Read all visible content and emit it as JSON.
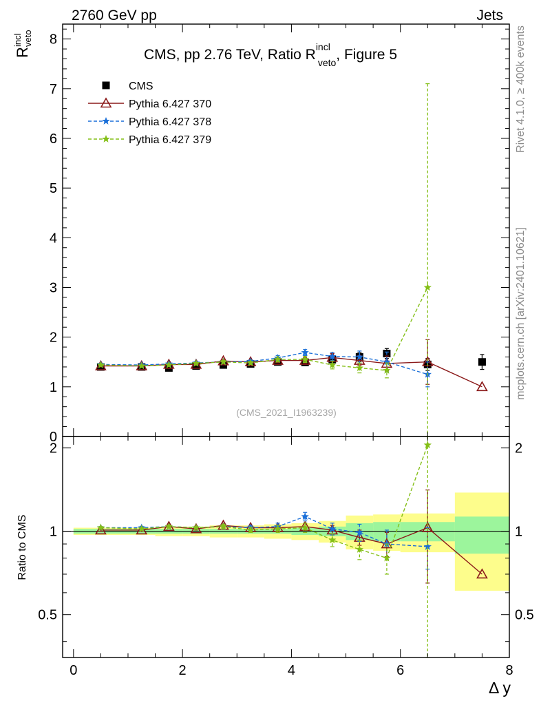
{
  "header": {
    "beam": "2760 GeV pp",
    "process": "Jets"
  },
  "side_text": {
    "rivet": "Rivet 4.1.0, ≥ 400k events",
    "mcplots": "mcplots.cern.ch [arXiv:2401.10621]"
  },
  "analysis_id": "(CMS_2021_I1963239)",
  "chart_data": [
    {
      "panel": "main",
      "type": "line",
      "title_main": "CMS, pp 2.76 TeV, Ratio R",
      "title_sup": "incl",
      "title_sub": "veto",
      "title_tail": ", Figure 5",
      "ylabel_main": "R",
      "ylabel_sup": "incl",
      "ylabel_sub": "veto",
      "xlabel": "Δ y",
      "xlim": [
        -0.2,
        8.0
      ],
      "ylim": [
        0,
        8.3
      ],
      "yticks": [
        0,
        1,
        2,
        3,
        4,
        5,
        6,
        7,
        8
      ],
      "ytick_labels": [
        "0",
        "1",
        "2",
        "3",
        "4",
        "5",
        "6",
        "7",
        "8"
      ],
      "xticks": [
        0,
        2,
        4,
        6,
        8
      ],
      "xtick_labels": [
        "0",
        "2",
        "4",
        "6",
        "8"
      ],
      "legend_position": "top-left",
      "x": [
        0.5,
        1.25,
        1.75,
        2.25,
        2.75,
        3.25,
        3.75,
        4.25,
        4.75,
        5.25,
        5.75,
        6.5,
        7.5
      ],
      "series": [
        {
          "name": "CMS",
          "color": "#000000",
          "marker": "square",
          "line": "none",
          "values": [
            1.4,
            1.4,
            1.38,
            1.42,
            1.44,
            1.46,
            1.5,
            1.49,
            1.55,
            1.6,
            1.67,
            1.45,
            1.5
          ],
          "errors": [
            0.02,
            0.02,
            0.02,
            0.02,
            0.02,
            0.03,
            0.03,
            0.04,
            0.06,
            0.09,
            0.1,
            0.12,
            0.15
          ]
        },
        {
          "name": "Pythia 6.427 370",
          "color": "#8b1a1a",
          "marker": "triangle-open",
          "line": "solid",
          "values": [
            1.42,
            1.42,
            1.45,
            1.45,
            1.52,
            1.5,
            1.53,
            1.53,
            1.59,
            1.53,
            1.47,
            1.5,
            1.0
          ],
          "errors": [
            0.02,
            0.02,
            0.02,
            0.02,
            0.03,
            0.03,
            0.04,
            0.05,
            0.08,
            0.1,
            0.15,
            0.45,
            0.0
          ]
        },
        {
          "name": "Pythia 6.427 378",
          "color": "#1a6fd8",
          "marker": "star",
          "line": "dashed",
          "values": [
            1.45,
            1.44,
            1.46,
            1.48,
            1.5,
            1.51,
            1.58,
            1.69,
            1.61,
            1.6,
            1.5,
            1.25,
            null
          ],
          "errors": [
            0.02,
            0.02,
            0.02,
            0.02,
            0.03,
            0.03,
            0.05,
            0.06,
            0.08,
            0.12,
            0.2,
            0.25,
            null
          ]
        },
        {
          "name": "Pythia 6.427 379",
          "color": "#84bf17",
          "marker": "star",
          "line": "dashed",
          "values": [
            1.44,
            1.42,
            1.44,
            1.47,
            1.5,
            1.48,
            1.55,
            1.55,
            1.44,
            1.38,
            1.33,
            3.0,
            null
          ],
          "errors": [
            0.02,
            0.02,
            0.02,
            0.02,
            0.03,
            0.03,
            0.05,
            0.06,
            0.08,
            0.1,
            0.15,
            4.1,
            null
          ]
        }
      ]
    },
    {
      "panel": "ratio",
      "type": "line",
      "ylabel": "Ratio to CMS",
      "xlabel": "Δ y",
      "xlim": [
        -0.2,
        8.0
      ],
      "ylim": [
        0.35,
        2.2
      ],
      "yticks": [
        0.5,
        1,
        2
      ],
      "ytick_labels": [
        "0.5",
        "1",
        "2"
      ],
      "xticks": [
        0,
        2,
        4,
        6,
        8
      ],
      "xtick_labels": [
        "0",
        "2",
        "4",
        "6",
        "8"
      ],
      "reference_line": 1.0,
      "band_edges": [
        0.0,
        1.0,
        1.5,
        2.0,
        2.5,
        3.0,
        3.5,
        4.0,
        4.5,
        5.0,
        5.5,
        6.0,
        7.0,
        8.0
      ],
      "band_stat": [
        [
          0.98,
          1.02
        ],
        [
          0.98,
          1.02
        ],
        [
          0.98,
          1.02
        ],
        [
          0.98,
          1.02
        ],
        [
          0.98,
          1.02
        ],
        [
          0.98,
          1.02
        ],
        [
          0.98,
          1.02
        ],
        [
          0.97,
          1.03
        ],
        [
          0.96,
          1.04
        ],
        [
          0.93,
          1.07
        ],
        [
          0.92,
          1.08
        ],
        [
          0.92,
          1.08
        ],
        [
          0.83,
          1.13
        ]
      ],
      "band_total": [
        [
          0.97,
          1.03
        ],
        [
          0.97,
          1.03
        ],
        [
          0.96,
          1.04
        ],
        [
          0.96,
          1.04
        ],
        [
          0.95,
          1.05
        ],
        [
          0.95,
          1.05
        ],
        [
          0.94,
          1.06
        ],
        [
          0.93,
          1.07
        ],
        [
          0.91,
          1.09
        ],
        [
          0.86,
          1.14
        ],
        [
          0.85,
          1.15
        ],
        [
          0.84,
          1.16
        ],
        [
          0.61,
          1.38
        ]
      ],
      "band_colors": {
        "stat": "#9cf59c",
        "total": "#fdfd8c"
      },
      "x": [
        0.5,
        1.25,
        1.75,
        2.25,
        2.75,
        3.25,
        3.75,
        4.25,
        4.75,
        5.25,
        5.75,
        6.5,
        7.5
      ],
      "series": [
        {
          "name": "Pythia 6.427 370",
          "color": "#8b1a1a",
          "marker": "triangle-open",
          "line": "solid",
          "values": [
            1.01,
            1.01,
            1.04,
            1.02,
            1.05,
            1.03,
            1.03,
            1.04,
            1.01,
            0.95,
            0.9,
            1.03,
            0.7
          ],
          "errors": [
            0.01,
            0.01,
            0.01,
            0.01,
            0.02,
            0.02,
            0.02,
            0.03,
            0.04,
            0.06,
            0.09,
            0.38,
            0.0
          ]
        },
        {
          "name": "Pythia 6.427 378",
          "color": "#1a6fd8",
          "marker": "star",
          "line": "dashed",
          "values": [
            1.03,
            1.03,
            1.04,
            1.03,
            1.04,
            1.03,
            1.04,
            1.13,
            1.02,
            0.99,
            0.9,
            0.88,
            null
          ],
          "errors": [
            0.01,
            0.01,
            0.01,
            0.01,
            0.02,
            0.02,
            0.03,
            0.04,
            0.05,
            0.07,
            0.11,
            0.15,
            null
          ]
        },
        {
          "name": "Pythia 6.427 379",
          "color": "#84bf17",
          "marker": "star",
          "line": "dashed",
          "values": [
            1.03,
            1.02,
            1.04,
            1.03,
            1.04,
            1.01,
            1.02,
            1.03,
            0.93,
            0.86,
            0.8,
            2.05,
            null
          ],
          "errors": [
            0.01,
            0.01,
            0.01,
            0.01,
            0.02,
            0.02,
            0.03,
            0.04,
            0.05,
            0.07,
            0.1,
            2.8,
            null
          ]
        }
      ]
    }
  ]
}
